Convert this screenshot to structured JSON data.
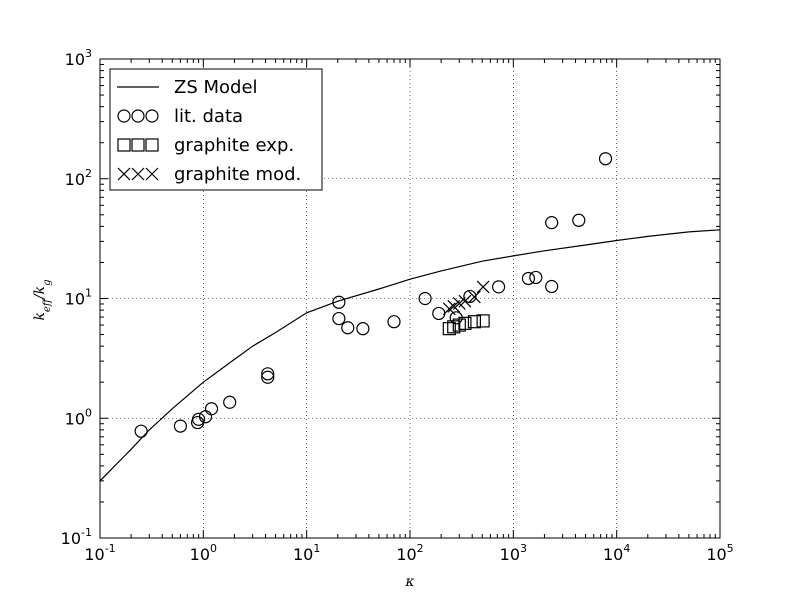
{
  "chart_data": {
    "type": "scatter",
    "xscale": "log",
    "yscale": "log",
    "xlim": [
      0.1,
      100000
    ],
    "ylim": [
      0.1,
      1000
    ],
    "grid": true,
    "legend_position": "top-left",
    "xlabel": "κ",
    "ylabel": "k_eff/k_g",
    "x_ticks": [
      {
        "base": "10",
        "exp": "-1",
        "value": 0.1
      },
      {
        "base": "10",
        "exp": "0",
        "value": 1
      },
      {
        "base": "10",
        "exp": "1",
        "value": 10
      },
      {
        "base": "10",
        "exp": "2",
        "value": 100
      },
      {
        "base": "10",
        "exp": "3",
        "value": 1000
      },
      {
        "base": "10",
        "exp": "4",
        "value": 10000
      },
      {
        "base": "10",
        "exp": "5",
        "value": 100000
      }
    ],
    "y_ticks": [
      {
        "base": "10",
        "exp": "-1",
        "value": 0.1
      },
      {
        "base": "10",
        "exp": "0",
        "value": 1
      },
      {
        "base": "10",
        "exp": "1",
        "value": 10
      },
      {
        "base": "10",
        "exp": "2",
        "value": 100
      },
      {
        "base": "10",
        "exp": "3",
        "value": 1000
      }
    ],
    "series": [
      {
        "name": "ZS Model",
        "marker": "line",
        "points": [
          [
            0.1,
            0.3
          ],
          [
            0.2,
            0.55
          ],
          [
            0.3,
            0.8
          ],
          [
            0.5,
            1.2
          ],
          [
            1,
            2.0
          ],
          [
            2,
            3.1
          ],
          [
            3,
            4.0
          ],
          [
            5,
            5.2
          ],
          [
            10,
            7.6
          ],
          [
            20,
            9.5
          ],
          [
            50,
            12.0
          ],
          [
            100,
            14.5
          ],
          [
            200,
            17.0
          ],
          [
            500,
            20.5
          ],
          [
            1000,
            22.7
          ],
          [
            2000,
            25.0
          ],
          [
            5000,
            28.0
          ],
          [
            10000,
            30.5
          ],
          [
            20000,
            33.0
          ],
          [
            50000,
            36.0
          ],
          [
            100000,
            37.5
          ]
        ]
      },
      {
        "name": "lit. data",
        "marker": "circle",
        "points": [
          [
            0.25,
            0.78
          ],
          [
            0.6,
            0.86
          ],
          [
            0.88,
            0.92
          ],
          [
            0.9,
            0.98
          ],
          [
            1.05,
            1.03
          ],
          [
            1.2,
            1.2
          ],
          [
            1.8,
            1.36
          ],
          [
            4.2,
            2.2
          ],
          [
            4.2,
            2.35
          ],
          [
            20.5,
            6.8
          ],
          [
            20.5,
            9.3
          ],
          [
            25,
            5.7
          ],
          [
            35,
            5.6
          ],
          [
            70,
            6.4
          ],
          [
            140,
            10.0
          ],
          [
            190,
            7.5
          ],
          [
            280,
            6.9
          ],
          [
            380,
            10.4
          ],
          [
            720,
            12.5
          ],
          [
            1400,
            14.7
          ],
          [
            1650,
            15.0
          ],
          [
            2350,
            12.6
          ],
          [
            2350,
            43.0
          ],
          [
            4300,
            45.0
          ],
          [
            7800,
            147.0
          ]
        ]
      },
      {
        "name": "graphite exp.",
        "marker": "square",
        "points": [
          [
            240,
            5.6
          ],
          [
            265,
            5.8
          ],
          [
            300,
            6.0
          ],
          [
            340,
            6.2
          ],
          [
            420,
            6.4
          ],
          [
            510,
            6.5
          ]
        ]
      },
      {
        "name": "graphite mod.",
        "marker": "x",
        "points": [
          [
            240,
            8.2
          ],
          [
            265,
            8.6
          ],
          [
            300,
            9.1
          ],
          [
            340,
            9.5
          ],
          [
            420,
            10.3
          ],
          [
            510,
            12.5
          ]
        ]
      }
    ]
  }
}
